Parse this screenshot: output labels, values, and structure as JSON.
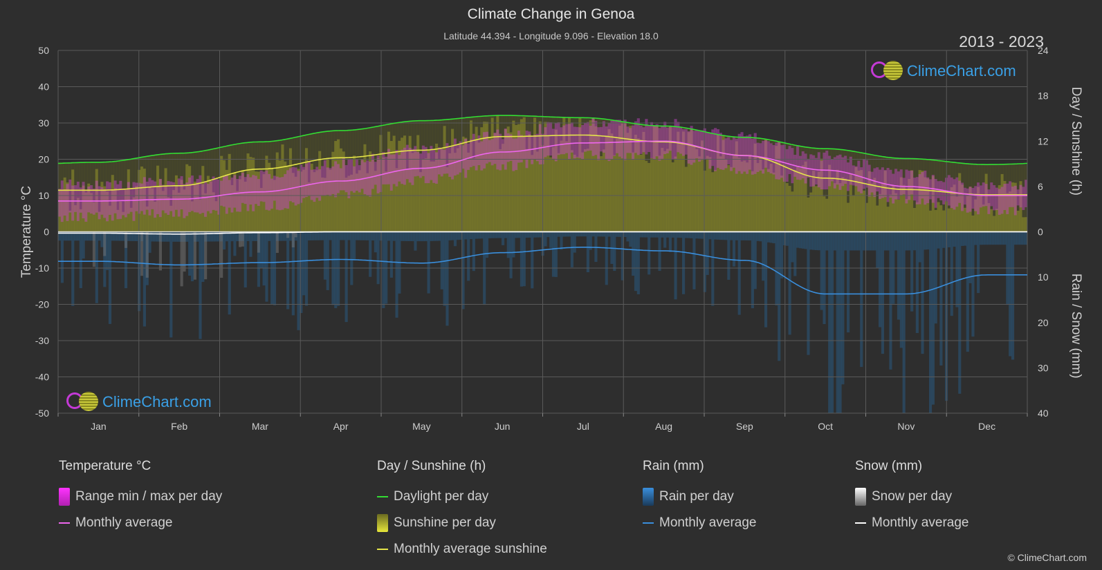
{
  "header": {
    "title": "Climate Change in Genoa",
    "subtitle": "Latitude 44.394 - Longitude 9.096 - Elevation 18.0",
    "years": "2013 - 2023"
  },
  "brand": {
    "name": "ClimeChart.com",
    "copyright": "© ClimeChart.com"
  },
  "colors": {
    "background": "#2e2e2e",
    "daylight": "#33dd33",
    "sunshine_avg": "#e6e64a",
    "temp_avg": "#ee66ee",
    "rain_avg": "#3a8fdd",
    "snow_avg": "#ffffff",
    "brand": "#3aa0e6"
  },
  "legend": {
    "temperature": {
      "title": "Temperature °C",
      "items": [
        {
          "label": "Range min / max per day",
          "icon": "magenta-range-swatch"
        },
        {
          "label": "Monthly average",
          "icon": "pink-line-swatch"
        }
      ]
    },
    "sunshine": {
      "title": "Day / Sunshine (h)",
      "items": [
        {
          "label": "Daylight per day",
          "icon": "green-line-swatch"
        },
        {
          "label": "Sunshine per day",
          "icon": "yellow-bar-swatch"
        },
        {
          "label": "Monthly average sunshine",
          "icon": "yellow-line-swatch"
        }
      ]
    },
    "rain": {
      "title": "Rain (mm)",
      "items": [
        {
          "label": "Rain per day",
          "icon": "blue-bar-swatch"
        },
        {
          "label": "Monthly average",
          "icon": "blue-line-swatch"
        }
      ]
    },
    "snow": {
      "title": "Snow (mm)",
      "items": [
        {
          "label": "Snow per day",
          "icon": "white-bar-swatch"
        },
        {
          "label": "Monthly average",
          "icon": "white-line-swatch"
        }
      ]
    }
  },
  "chart_data": {
    "type": "line",
    "title": "Climate Change in Genoa",
    "months": [
      "Jan",
      "Feb",
      "Mar",
      "Apr",
      "May",
      "Jun",
      "Jul",
      "Aug",
      "Sep",
      "Oct",
      "Nov",
      "Dec"
    ],
    "left_axis": {
      "label": "Temperature °C",
      "range": [
        -50,
        50
      ],
      "ticks": [
        50,
        40,
        30,
        20,
        10,
        0,
        -10,
        -20,
        -30,
        -40,
        -50
      ]
    },
    "right_axis_top": {
      "label": "Day / Sunshine (h)",
      "range": [
        0,
        24
      ],
      "ticks": [
        24,
        18,
        12,
        6,
        0
      ]
    },
    "right_axis_bottom": {
      "label": "Rain / Snow (mm)",
      "range": [
        0,
        40
      ],
      "ticks": [
        0,
        10,
        20,
        30,
        40
      ]
    },
    "grid": true,
    "series": [
      {
        "name": "Daylight per day",
        "unit": "h",
        "values": [
          9.2,
          10.4,
          11.9,
          13.4,
          14.7,
          15.4,
          15.1,
          14.0,
          12.5,
          11.0,
          9.7,
          8.9
        ]
      },
      {
        "name": "Monthly average sunshine",
        "unit": "h",
        "values": [
          5.5,
          6.1,
          8.3,
          9.8,
          10.8,
          12.6,
          12.8,
          11.9,
          10.1,
          7.1,
          5.6,
          4.9
        ]
      },
      {
        "name": "Monthly average",
        "unit": "°C",
        "values": [
          8.5,
          9.0,
          11.0,
          14.0,
          17.5,
          22.0,
          24.5,
          25.0,
          21.0,
          17.0,
          12.5,
          10.0
        ]
      },
      {
        "name": "Monthly average",
        "unit": "mm",
        "values": [
          6.5,
          7.3,
          6.8,
          6.1,
          6.9,
          4.6,
          3.4,
          4.2,
          6.3,
          13.7,
          13.7,
          9.5
        ]
      },
      {
        "name": "Monthly average",
        "unit": "mm",
        "values": [
          0.3,
          0.5,
          0.2,
          0.0,
          0.0,
          0.0,
          0.0,
          0.0,
          0.0,
          0.0,
          0.0,
          0.0
        ]
      }
    ],
    "temp_range": {
      "min": [
        4,
        5,
        7,
        10,
        14,
        18,
        21,
        21,
        17,
        13,
        9,
        6
      ],
      "max": [
        13,
        14,
        16,
        19,
        23,
        27,
        30,
        30,
        26,
        21,
        16,
        13
      ]
    }
  }
}
